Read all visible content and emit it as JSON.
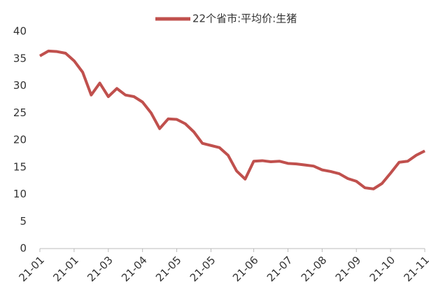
{
  "chart_data": {
    "type": "line",
    "categories": [
      "21-01",
      null,
      null,
      null,
      "21-01",
      null,
      null,
      null,
      "21-03",
      null,
      null,
      null,
      "21-04",
      null,
      null,
      null,
      "21-05",
      null,
      null,
      null,
      "21-05",
      null,
      null,
      null,
      null,
      "21-06",
      null,
      null,
      null,
      "21-07",
      null,
      null,
      null,
      "21-08",
      null,
      null,
      null,
      "21-09",
      null,
      null,
      null,
      "21-10",
      null,
      null,
      null,
      "21-11"
    ],
    "series": [
      {
        "name": "22个省市:平均价:生猪",
        "color": "#c0504d",
        "values": [
          35.5,
          36.4,
          36.3,
          36.0,
          34.6,
          32.5,
          28.3,
          30.5,
          28.0,
          29.5,
          28.3,
          28.0,
          27.0,
          25.0,
          22.1,
          23.9,
          23.8,
          23.0,
          21.5,
          19.4,
          19.0,
          18.6,
          17.2,
          14.3,
          12.8,
          16.1,
          16.2,
          16.0,
          16.1,
          15.7,
          15.6,
          15.4,
          15.2,
          14.5,
          14.2,
          13.8,
          12.9,
          12.4,
          11.2,
          11.0,
          12.0,
          13.9,
          15.9,
          16.1,
          17.2,
          18.0
        ]
      }
    ],
    "ylim": [
      0,
      40
    ],
    "yticks": [
      0,
      5,
      10,
      15,
      20,
      25,
      30,
      35,
      40
    ],
    "grid": false,
    "legend": "top"
  }
}
